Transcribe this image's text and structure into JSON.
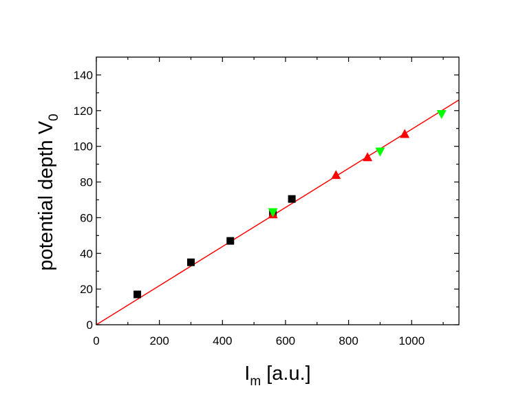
{
  "chart_data": {
    "type": "scatter",
    "xlabel": {
      "main": "I",
      "sub": "m",
      "rest": " [a.u.]"
    },
    "ylabel": {
      "main": "potential depth V",
      "sub": "0"
    },
    "xlim": [
      0,
      1150
    ],
    "ylim": [
      0,
      150
    ],
    "x_ticks": [
      "0",
      "200",
      "400",
      "600",
      "800",
      "1000"
    ],
    "y_ticks": [
      "0",
      "20",
      "40",
      "60",
      "80",
      "100",
      "120",
      "140"
    ],
    "grid": false,
    "series": [
      {
        "marker": "square",
        "color": "#000000",
        "x": [
          130,
          300,
          425,
          560,
          620
        ],
        "y": [
          17,
          35,
          47,
          62,
          70.5
        ]
      },
      {
        "marker": "triangle-up",
        "color": "#ff0000",
        "x": [
          560,
          760,
          860,
          978
        ],
        "y": [
          62,
          84,
          94,
          107
        ]
      },
      {
        "marker": "triangle-down",
        "color": "#00ff00",
        "x": [
          560,
          900,
          1095
        ],
        "y": [
          63,
          97,
          118
        ]
      }
    ],
    "fit_line": {
      "color": "#ff0000",
      "x": [
        0,
        1150
      ],
      "y": [
        0,
        126
      ]
    }
  }
}
